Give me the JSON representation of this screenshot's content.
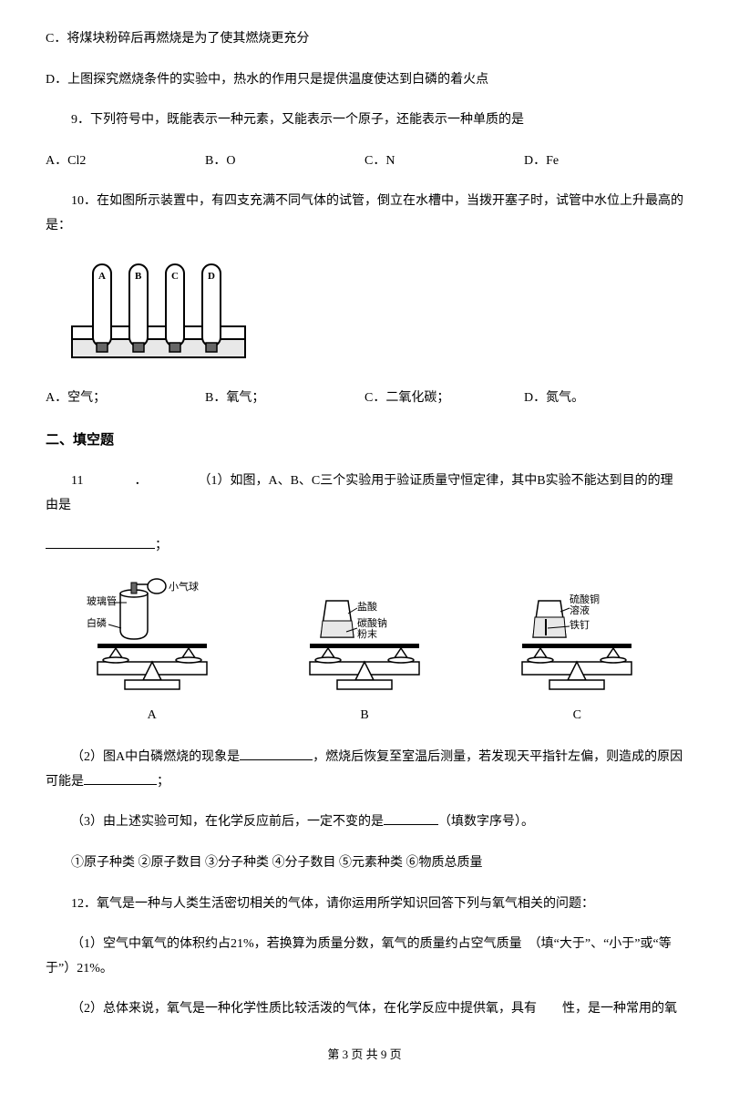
{
  "line1": "C．将煤块粉碎后再燃烧是为了使其燃烧更充分",
  "line2": "D．上图探究燃烧条件的实验中，热水的作用只是提供温度使达到白磷的着火点",
  "q9": "9．下列符号中，既能表示一种元素，又能表示一个原子，还能表示一种单质的是",
  "q9_opts": {
    "a": "A．Cl2",
    "b": "B．O",
    "c": "C．N",
    "d": "D．Fe"
  },
  "q10": "10．在如图所示装置中，有四支充满不同气体的试管，倒立在水槽中，当拨开塞子时，试管中水位上升最高的是：",
  "q10_opts": {
    "a": "A．空气；",
    "b": "B．氧气；",
    "c": "C．二氧化碳；",
    "d": "D．氮气。"
  },
  "section2": "二、填空题",
  "q11_a": "11    ．    （1）如图，A、B、C三个实验用于验证质量守恒定律，其中B实验不能达到目的的理由是",
  "q11_a_end": "；",
  "balance": {
    "a": {
      "left_top": "玻璃管",
      "left_bot": "白磷",
      "right": "小气球",
      "label": "A"
    },
    "b": {
      "left": "盐酸",
      "right": "碳酸钠\n粉末",
      "label": "B"
    },
    "c": {
      "top": "硫酸铜\n溶液",
      "bot": "铁钉",
      "label": "C"
    }
  },
  "q11_2_a": "（2）图A中白磷燃烧的现象是",
  "q11_2_b": "，燃烧后恢复至室温后测量，若发现天平指针左偏，则造成的原因可能是",
  "q11_2_c": "；",
  "q11_3_a": "（3）由上述实验可知，在化学反应前后，一定不变的是",
  "q11_3_b": "（填数字序号）。",
  "q11_4": "①原子种类  ②原子数目  ③分子种类  ④分子数目  ⑤元素种类  ⑥物质总质量",
  "q12": "12．氧气是一种与人类生活密切相关的气体，请你运用所学知识回答下列与氧气相关的问题：",
  "q12_1": "（1）空气中氧气的体积约占21%，若换算为质量分数，氧气的质量约占空气质量　（填“大于”、“小于”或“等于”）21%。",
  "q12_2": "（2）总体来说，氧气是一种化学性质比较活泼的气体，在化学反应中提供氧，具有　　性，是一种常用的氧",
  "footer": "第 3 页 共 9 页",
  "tube_labels": [
    "A",
    "B",
    "C",
    "D"
  ],
  "svg_colors": {
    "stroke": "#000000",
    "fill_white": "#ffffff",
    "fill_gray": "#e8e8e8"
  }
}
